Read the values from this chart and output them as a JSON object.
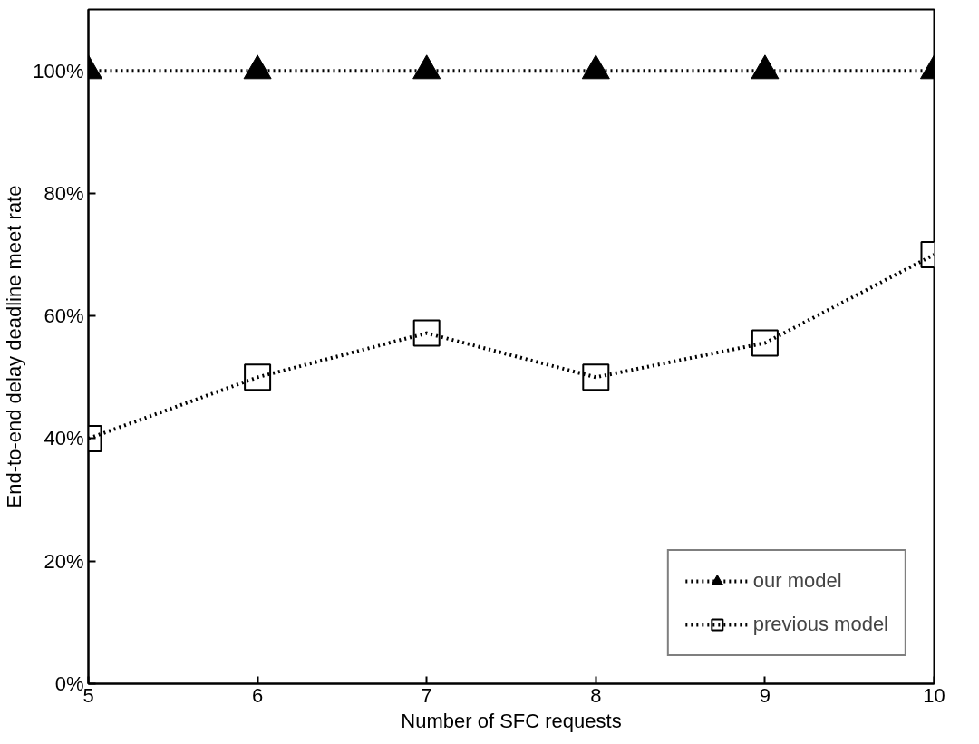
{
  "chart_data": {
    "type": "line",
    "xlabel": "Number of SFC requests",
    "ylabel": "End-to-end delay deadline meet rate",
    "x": [
      5,
      6,
      7,
      8,
      9,
      10
    ],
    "series": [
      {
        "name": "our model",
        "color": "#000000",
        "marker": "triangle",
        "values": [
          100,
          100,
          100,
          100,
          100,
          100
        ]
      },
      {
        "name": "previous model",
        "color": "#000000",
        "marker": "square",
        "values": [
          40,
          50,
          57.2,
          50,
          55.6,
          70
        ]
      }
    ],
    "xlim": [
      5,
      10
    ],
    "xticks": [
      5,
      6,
      7,
      8,
      9,
      10
    ],
    "ylim": [
      0,
      110
    ],
    "yticks": [
      {
        "value": 0,
        "label": "0%"
      },
      {
        "value": 20,
        "label": "20%"
      },
      {
        "value": 40,
        "label": "40%"
      },
      {
        "value": 60,
        "label": "60%"
      },
      {
        "value": 80,
        "label": "80%"
      },
      {
        "value": 100,
        "label": "100%"
      }
    ],
    "grid": false,
    "legend": "bottom right",
    "line_style": "dotted"
  }
}
